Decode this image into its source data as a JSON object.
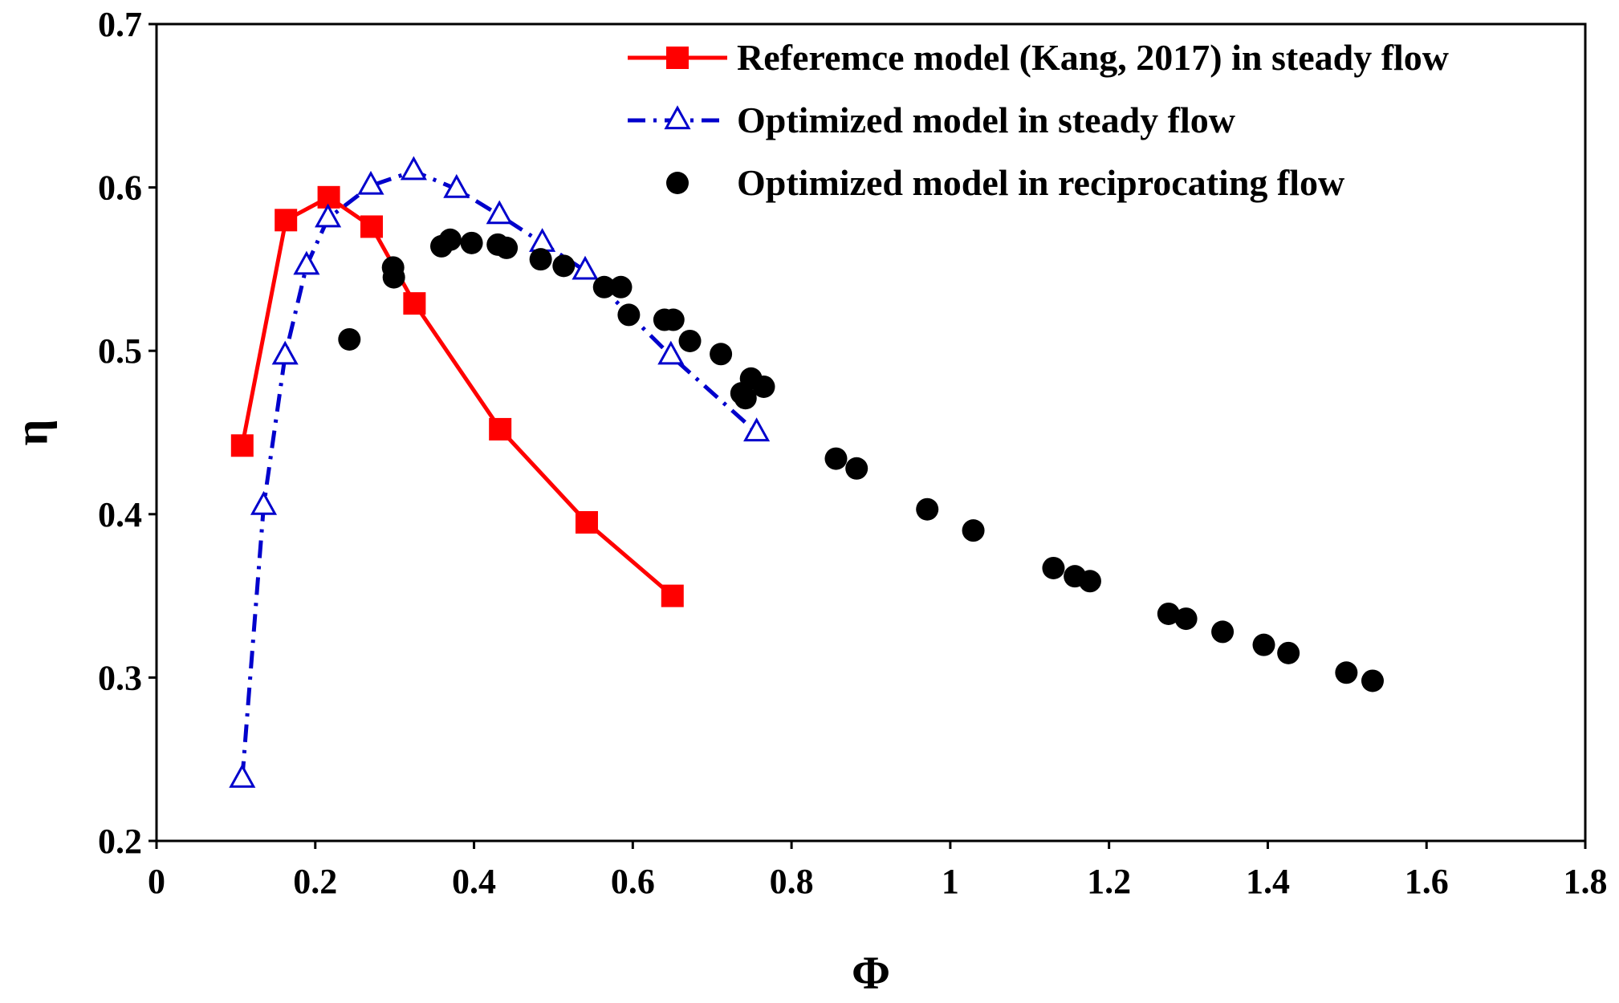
{
  "chart_data": {
    "type": "scatter",
    "xlabel": "Φ",
    "ylabel": "η",
    "xlim": [
      0,
      1.8
    ],
    "ylim": [
      0.2,
      0.7
    ],
    "xticks": [
      0,
      0.2,
      0.4,
      0.6,
      0.8,
      1,
      1.2,
      1.4,
      1.6,
      1.8
    ],
    "xtick_labels": [
      "0",
      "0.2",
      "0.4",
      "0.6",
      "0.8",
      "1",
      "1.2",
      "1.4",
      "1.6",
      "1.8"
    ],
    "yticks": [
      0.2,
      0.3,
      0.4,
      0.5,
      0.6,
      0.7
    ],
    "ytick_labels": [
      "0.2",
      "0.3",
      "0.4",
      "0.5",
      "0.6",
      "0.7"
    ],
    "grid": false,
    "legend_position": "top-right",
    "series": [
      {
        "name": "Referemce model (Kang, 2017) in steady flow",
        "style": "line-square",
        "color": "#ff0000",
        "x": [
          0.108,
          0.163,
          0.217,
          0.271,
          0.325,
          0.433,
          0.542,
          0.65
        ],
        "y": [
          0.442,
          0.58,
          0.594,
          0.576,
          0.529,
          0.452,
          0.395,
          0.35
        ]
      },
      {
        "name": "Optimized model in steady flow",
        "style": "dashdot-triangle",
        "color": "#0000cc",
        "x": [
          0.108,
          0.135,
          0.162,
          0.189,
          0.216,
          0.27,
          0.324,
          0.378,
          0.432,
          0.486,
          0.54,
          0.648,
          0.756
        ],
        "y": [
          0.238,
          0.405,
          0.497,
          0.552,
          0.581,
          0.601,
          0.61,
          0.599,
          0.583,
          0.566,
          0.549,
          0.497,
          0.45
        ]
      },
      {
        "name": "Optimized model in reciprocating flow",
        "style": "dot",
        "color": "#000000",
        "x": [
          0.243,
          0.298,
          0.299,
          0.359,
          0.37,
          0.397,
          0.43,
          0.441,
          0.484,
          0.513,
          0.564,
          0.585,
          0.595,
          0.64,
          0.651,
          0.672,
          0.711,
          0.737,
          0.742,
          0.749,
          0.765,
          0.856,
          0.882,
          0.971,
          1.029,
          1.13,
          1.157,
          1.176,
          1.275,
          1.297,
          1.343,
          1.395,
          1.426,
          1.499,
          1.532
        ],
        "y": [
          0.507,
          0.551,
          0.545,
          0.564,
          0.568,
          0.566,
          0.565,
          0.563,
          0.556,
          0.552,
          0.539,
          0.539,
          0.522,
          0.519,
          0.519,
          0.506,
          0.498,
          0.474,
          0.471,
          0.483,
          0.478,
          0.434,
          0.428,
          0.403,
          0.39,
          0.367,
          0.362,
          0.359,
          0.339,
          0.336,
          0.328,
          0.32,
          0.315,
          0.303,
          0.298
        ]
      }
    ]
  }
}
